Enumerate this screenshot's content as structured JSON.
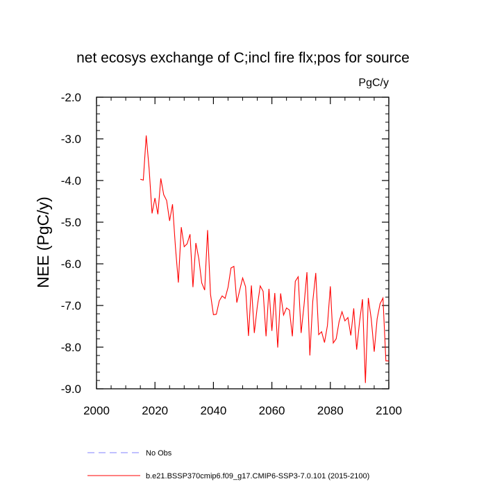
{
  "chart_data": {
    "type": "line",
    "title": "net ecosys exchange of C;incl fire flx;pos for source",
    "units_label": "PgC/y",
    "ylabel": "NEE  (PgC/y)",
    "xlabel": "",
    "xlim": [
      2000,
      2100
    ],
    "ylim": [
      -9.0,
      -2.0
    ],
    "x_ticks": [
      2000,
      2020,
      2040,
      2060,
      2080,
      2100
    ],
    "x_tick_labels": [
      "2000",
      "2020",
      "2040",
      "2060",
      "2080",
      "2100"
    ],
    "y_ticks": [
      -2.0,
      -3.0,
      -4.0,
      -5.0,
      -6.0,
      -7.0,
      -8.0,
      -9.0
    ],
    "y_tick_labels": [
      "-2.0",
      "-3.0",
      "-4.0",
      "-5.0",
      "-6.0",
      "-7.0",
      "-8.0",
      "-9.0"
    ],
    "legend": [
      {
        "label": "No Obs",
        "color": "#8080ff",
        "style": "dashed"
      },
      {
        "label": "b.e21.BSSP370cmip6.f09_g17.CMIP6-SSP3-7.0.101 (2015-2100)",
        "color": "#ff0000",
        "style": "solid"
      }
    ],
    "series": [
      {
        "name": "b.e21.BSSP370cmip6.f09_g17.CMIP6-SSP3-7.0.101 (2015-2100)",
        "color": "#ff0000",
        "x": [
          2015,
          2016,
          2017,
          2018,
          2019,
          2020,
          2021,
          2022,
          2023,
          2024,
          2025,
          2026,
          2027,
          2028,
          2029,
          2030,
          2031,
          2032,
          2033,
          2034,
          2035,
          2036,
          2037,
          2038,
          2039,
          2040,
          2041,
          2042,
          2043,
          2044,
          2045,
          2046,
          2047,
          2048,
          2049,
          2050,
          2051,
          2052,
          2053,
          2054,
          2055,
          2056,
          2057,
          2058,
          2059,
          2060,
          2061,
          2062,
          2063,
          2064,
          2065,
          2066,
          2067,
          2068,
          2069,
          2070,
          2071,
          2072,
          2073,
          2074,
          2075,
          2076,
          2077,
          2078,
          2079,
          2080,
          2081,
          2082,
          2083,
          2084,
          2085,
          2086,
          2087,
          2088,
          2089,
          2090,
          2091,
          2092,
          2093,
          2094,
          2095,
          2096,
          2097,
          2098,
          2099,
          2100
        ],
        "values": [
          -3.97,
          -3.99,
          -2.92,
          -3.72,
          -4.79,
          -4.42,
          -4.81,
          -3.95,
          -4.34,
          -4.48,
          -4.97,
          -4.57,
          -5.6,
          -6.45,
          -5.12,
          -5.59,
          -5.52,
          -5.29,
          -6.56,
          -5.5,
          -5.88,
          -6.46,
          -6.63,
          -5.19,
          -6.73,
          -7.22,
          -7.21,
          -6.89,
          -6.77,
          -6.83,
          -6.56,
          -6.1,
          -6.06,
          -6.93,
          -6.63,
          -6.34,
          -6.55,
          -7.73,
          -6.52,
          -7.66,
          -7.02,
          -6.53,
          -6.66,
          -7.74,
          -6.6,
          -7.61,
          -6.7,
          -8.01,
          -6.71,
          -7.23,
          -7.06,
          -7.11,
          -7.74,
          -6.42,
          -6.31,
          -7.66,
          -6.99,
          -6.2,
          -8.2,
          -6.9,
          -6.22,
          -7.7,
          -7.63,
          -7.89,
          -7.48,
          -6.54,
          -7.9,
          -7.8,
          -7.39,
          -7.15,
          -7.37,
          -7.29,
          -7.72,
          -7.07,
          -8.06,
          -7.39,
          -6.85,
          -8.86,
          -6.82,
          -7.32,
          -8.11,
          -7.32,
          -6.96,
          -6.82,
          -8.33,
          -8.33
        ]
      }
    ]
  }
}
